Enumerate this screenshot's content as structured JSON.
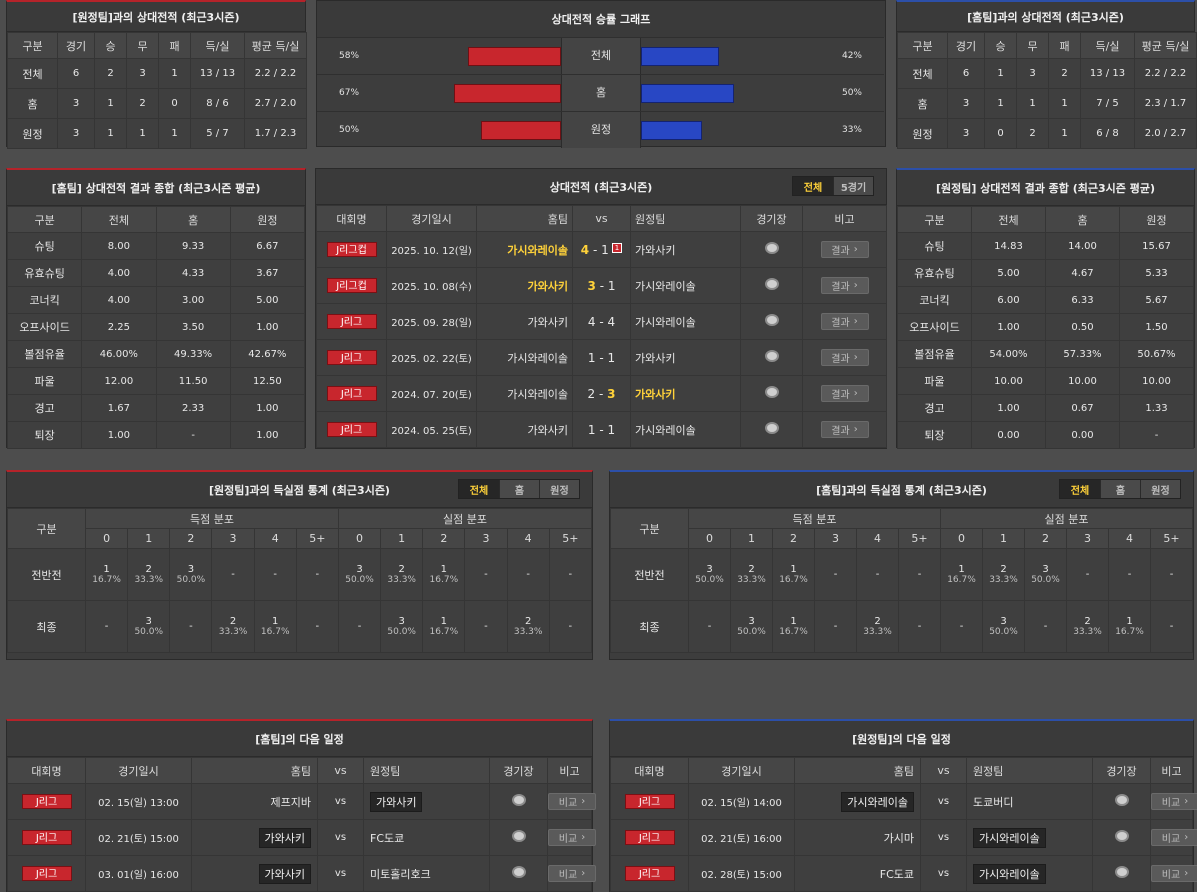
{
  "away_h2h": {
    "title": "[원정팀]과의 상대전적 (최근3시즌)",
    "headers": [
      "구분",
      "경기",
      "승",
      "무",
      "패",
      "득/실",
      "평균 득/실"
    ],
    "rows": [
      [
        "전체",
        "6",
        "2",
        "3",
        "1",
        "13 / 13",
        "2.2 / 2.2"
      ],
      [
        "홈",
        "3",
        "1",
        "2",
        "0",
        "8 / 6",
        "2.7 / 2.0"
      ],
      [
        "원정",
        "3",
        "1",
        "1",
        "1",
        "5 / 7",
        "1.7 / 2.3"
      ]
    ]
  },
  "home_h2h": {
    "title": "[홈팀]과의 상대전적 (최근3시즌)",
    "headers": [
      "구분",
      "경기",
      "승",
      "무",
      "패",
      "득/실",
      "평균 득/실"
    ],
    "rows": [
      [
        "전체",
        "6",
        "1",
        "3",
        "2",
        "13 / 13",
        "2.2 / 2.2"
      ],
      [
        "홈",
        "3",
        "1",
        "1",
        "1",
        "7 / 5",
        "2.3 / 1.7"
      ],
      [
        "원정",
        "3",
        "0",
        "2",
        "1",
        "6 / 8",
        "2.0 / 2.7"
      ]
    ]
  },
  "graph": {
    "title": "상대전적 승률 그래프",
    "colors": {
      "left": "#c8262d",
      "right": "#2847c4"
    },
    "rows": [
      {
        "label": "전체",
        "left": "58%",
        "right": "42%",
        "left_value": 58,
        "right_value": 42
      },
      {
        "label": "홈",
        "left": "67%",
        "right": "50%",
        "left_value": 67,
        "right_value": 50
      },
      {
        "label": "원정",
        "left": "50%",
        "right": "33%",
        "left_value": 50,
        "right_value": 33
      }
    ]
  },
  "home_summary": {
    "title": "[홈팀] 상대전적 결과 종합 (최근3시즌 평균)",
    "headers": [
      "구분",
      "전체",
      "홈",
      "원정"
    ],
    "rows": [
      [
        "슈팅",
        "8.00",
        "9.33",
        "6.67"
      ],
      [
        "유효슈팅",
        "4.00",
        "4.33",
        "3.67"
      ],
      [
        "코너킥",
        "4.00",
        "3.00",
        "5.00"
      ],
      [
        "오프사이드",
        "2.25",
        "3.50",
        "1.00"
      ],
      [
        "볼점유율",
        "46.00%",
        "49.33%",
        "42.67%"
      ],
      [
        "파울",
        "12.00",
        "11.50",
        "12.50"
      ],
      [
        "경고",
        "1.67",
        "2.33",
        "1.00"
      ],
      [
        "퇴장",
        "1.00",
        "-",
        "1.00"
      ]
    ]
  },
  "away_summary": {
    "title": "[원정팀] 상대전적 결과 종합 (최근3시즌 평균)",
    "headers": [
      "구분",
      "전체",
      "홈",
      "원정"
    ],
    "rows": [
      [
        "슈팅",
        "14.83",
        "14.00",
        "15.67"
      ],
      [
        "유효슈팅",
        "5.00",
        "4.67",
        "5.33"
      ],
      [
        "코너킥",
        "6.00",
        "6.33",
        "5.67"
      ],
      [
        "오프사이드",
        "1.00",
        "0.50",
        "1.50"
      ],
      [
        "볼점유율",
        "54.00%",
        "57.33%",
        "50.67%"
      ],
      [
        "파울",
        "10.00",
        "10.00",
        "10.00"
      ],
      [
        "경고",
        "1.00",
        "0.67",
        "1.33"
      ],
      [
        "퇴장",
        "0.00",
        "0.00",
        "-"
      ]
    ]
  },
  "matches": {
    "title": "상대전적 (최근3시즌)",
    "tabs": [
      "전체",
      "5경기"
    ],
    "headers": {
      "comp": "대회명",
      "date": "경기일시",
      "home": "홈팀",
      "vs": "vs",
      "away": "원정팀",
      "venue": "경기장",
      "note": "비고"
    },
    "result_label": "결과",
    "card_badge": "1",
    "rows": [
      {
        "comp": "J리그컵",
        "date": "2025. 10. 12(일)",
        "home": "가시와레이솔",
        "hs": "4",
        "as": "1",
        "away": "가와사키",
        "winner": "home",
        "card": true
      },
      {
        "comp": "J리그컵",
        "date": "2025. 10. 08(수)",
        "home": "가와사키",
        "hs": "3",
        "as": "1",
        "away": "가시와레이솔",
        "winner": "home",
        "card": false
      },
      {
        "comp": "J리그",
        "date": "2025. 09. 28(일)",
        "home": "가와사키",
        "hs": "4",
        "as": "4",
        "away": "가시와레이솔",
        "winner": "draw",
        "card": false
      },
      {
        "comp": "J리그",
        "date": "2025. 02. 22(토)",
        "home": "가시와레이솔",
        "hs": "1",
        "as": "1",
        "away": "가와사키",
        "winner": "draw",
        "card": false
      },
      {
        "comp": "J리그",
        "date": "2024. 07. 20(토)",
        "home": "가시와레이솔",
        "hs": "2",
        "as": "3",
        "away": "가와사키",
        "winner": "away",
        "card": false
      },
      {
        "comp": "J리그",
        "date": "2024. 05. 25(토)",
        "home": "가와사키",
        "hs": "1",
        "as": "1",
        "away": "가시와레이솔",
        "winner": "draw",
        "card": false
      }
    ]
  },
  "goal_stats_away": {
    "title": "[원정팀]과의 득실점 통계 (최근3시즌)",
    "tabs": [
      "전체",
      "홈",
      "원정"
    ],
    "label_col": "구분",
    "groups": [
      "득점 분포",
      "실점 분포"
    ],
    "cols": [
      "0",
      "1",
      "2",
      "3",
      "4",
      "5+"
    ],
    "rows": [
      {
        "label": "전반전",
        "cells": [
          [
            "1",
            "16.7%"
          ],
          [
            "2",
            "33.3%"
          ],
          [
            "3",
            "50.0%"
          ],
          [
            "-",
            ""
          ],
          [
            "-",
            ""
          ],
          [
            "-",
            ""
          ],
          [
            "3",
            "50.0%"
          ],
          [
            "2",
            "33.3%"
          ],
          [
            "1",
            "16.7%"
          ],
          [
            "-",
            ""
          ],
          [
            "-",
            ""
          ],
          [
            "-",
            ""
          ]
        ]
      },
      {
        "label": "최종",
        "cells": [
          [
            "-",
            ""
          ],
          [
            "3",
            "50.0%"
          ],
          [
            "-",
            ""
          ],
          [
            "2",
            "33.3%"
          ],
          [
            "1",
            "16.7%"
          ],
          [
            "-",
            ""
          ],
          [
            "-",
            ""
          ],
          [
            "3",
            "50.0%"
          ],
          [
            "1",
            "16.7%"
          ],
          [
            "-",
            ""
          ],
          [
            "2",
            "33.3%"
          ],
          [
            "-",
            ""
          ]
        ]
      }
    ]
  },
  "goal_stats_home": {
    "title": "[홈팀]과의 득실점 통계 (최근3시즌)",
    "tabs": [
      "전체",
      "홈",
      "원정"
    ],
    "label_col": "구분",
    "groups": [
      "득점 분포",
      "실점 분포"
    ],
    "cols": [
      "0",
      "1",
      "2",
      "3",
      "4",
      "5+"
    ],
    "rows": [
      {
        "label": "전반전",
        "cells": [
          [
            "3",
            "50.0%"
          ],
          [
            "2",
            "33.3%"
          ],
          [
            "1",
            "16.7%"
          ],
          [
            "-",
            ""
          ],
          [
            "-",
            ""
          ],
          [
            "-",
            ""
          ],
          [
            "1",
            "16.7%"
          ],
          [
            "2",
            "33.3%"
          ],
          [
            "3",
            "50.0%"
          ],
          [
            "-",
            ""
          ],
          [
            "-",
            ""
          ],
          [
            "-",
            ""
          ]
        ]
      },
      {
        "label": "최종",
        "cells": [
          [
            "-",
            ""
          ],
          [
            "3",
            "50.0%"
          ],
          [
            "1",
            "16.7%"
          ],
          [
            "-",
            ""
          ],
          [
            "2",
            "33.3%"
          ],
          [
            "-",
            ""
          ],
          [
            "-",
            ""
          ],
          [
            "3",
            "50.0%"
          ],
          [
            "-",
            ""
          ],
          [
            "2",
            "33.3%"
          ],
          [
            "1",
            "16.7%"
          ],
          [
            "-",
            ""
          ]
        ]
      }
    ]
  },
  "home_next": {
    "title": "[홈팀]의 다음 일정",
    "headers": {
      "comp": "대회명",
      "date": "경기일시",
      "home": "홈팀",
      "vs": "vs",
      "away": "원정팀",
      "venue": "경기장",
      "note": "비고"
    },
    "button": "비교",
    "rows": [
      {
        "comp": "J리그",
        "date": "02. 15(일) 13:00",
        "home": "제프지바",
        "away": "가와사키",
        "hl": "away"
      },
      {
        "comp": "J리그",
        "date": "02. 21(토) 15:00",
        "home": "가와사키",
        "away": "FC도쿄",
        "hl": "home"
      },
      {
        "comp": "J리그",
        "date": "03. 01(일) 16:00",
        "home": "가와사키",
        "away": "미토홀리호크",
        "hl": "home"
      }
    ]
  },
  "away_next": {
    "title": "[원정팀]의 다음 일정",
    "headers": {
      "comp": "대회명",
      "date": "경기일시",
      "home": "홈팀",
      "vs": "vs",
      "away": "원정팀",
      "venue": "경기장",
      "note": "비고"
    },
    "button": "비교",
    "rows": [
      {
        "comp": "J리그",
        "date": "02. 15(일) 14:00",
        "home": "가시와레이솔",
        "away": "도쿄버디",
        "hl": "home"
      },
      {
        "comp": "J리그",
        "date": "02. 21(토) 16:00",
        "home": "가시마",
        "away": "가시와레이솔",
        "hl": "away"
      },
      {
        "comp": "J리그",
        "date": "02. 28(토) 15:00",
        "home": "FC도쿄",
        "away": "가시와레이솔",
        "hl": "away"
      }
    ]
  }
}
